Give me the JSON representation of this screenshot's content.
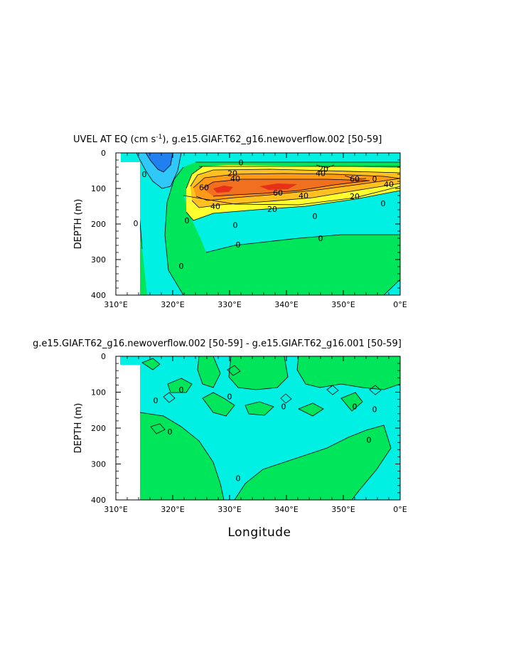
{
  "colors": {
    "cyan": "#00f0e4",
    "green": "#00e65a",
    "blue_dark": "#2080f0",
    "blue_light": "#30c8f8",
    "yellow": "#ffff30",
    "orange_light": "#ffc020",
    "orange": "#ff9a18",
    "orange_dark": "#f07020",
    "red": "#e63018"
  },
  "chart_data": [
    {
      "type": "heatmap",
      "title_prefix": "UVEL AT EQ (cm s",
      "title_sup": "-1",
      "title_suffix": "), g.e15.GIAF.T62_g16.newoverflow.002 [50-59]",
      "ylabel": "DEPTH (m)",
      "xlabel": "",
      "x_ticks": [
        "310°E",
        "320°E",
        "330°E",
        "340°E",
        "350°E",
        "0°E"
      ],
      "y_ticks": [
        "0",
        "100",
        "200",
        "300",
        "400"
      ],
      "xlim": [
        310,
        360
      ],
      "ylim": [
        400,
        0
      ],
      "contour_labels": [
        {
          "text": "0",
          "lon": 332,
          "depth": 27
        },
        {
          "text": "0",
          "lon": 313.5,
          "depth": 198
        },
        {
          "text": "0",
          "lon": 331.5,
          "depth": 258
        },
        {
          "text": "0",
          "lon": 346,
          "depth": 240
        },
        {
          "text": "0",
          "lon": 321.5,
          "depth": 318
        },
        {
          "text": "0",
          "lon": 345,
          "depth": 178
        },
        {
          "text": "0",
          "lon": 357,
          "depth": 142
        },
        {
          "text": "0",
          "lon": 355.5,
          "depth": 73
        },
        {
          "text": "0",
          "lon": 331,
          "depth": 203
        },
        {
          "text": "0",
          "lon": 315,
          "depth": 60
        },
        {
          "text": "20",
          "lon": 330.5,
          "depth": 57
        },
        {
          "text": "20",
          "lon": 337.5,
          "depth": 158
        },
        {
          "text": "20",
          "lon": 352,
          "depth": 122
        },
        {
          "text": "40",
          "lon": 331,
          "depth": 72
        },
        {
          "text": "40",
          "lon": 327.5,
          "depth": 150
        },
        {
          "text": "40",
          "lon": 343,
          "depth": 120
        },
        {
          "text": "40",
          "lon": 358,
          "depth": 88
        },
        {
          "text": "40",
          "lon": 346,
          "depth": 57
        },
        {
          "text": "60",
          "lon": 325.5,
          "depth": 97
        },
        {
          "text": "60",
          "lon": 338.5,
          "depth": 112
        },
        {
          "text": "60",
          "lon": 352,
          "depth": 73
        },
        {
          "text": "20",
          "lon": 346.5,
          "depth": 45
        },
        {
          "text": "0",
          "lon": 322.5,
          "depth": 190
        }
      ]
    },
    {
      "type": "heatmap",
      "title": "g.e15.GIAF.T62_g16.newoverflow.002 [50-59] - g.e15.GIAF.T62_g16.001 [50-59]",
      "ylabel": "DEPTH (m)",
      "xlabel": "Longitude",
      "x_ticks": [
        "310°E",
        "320°E",
        "330°E",
        "340°E",
        "350°E",
        "0°E"
      ],
      "y_ticks": [
        "0",
        "100",
        "200",
        "300",
        "400"
      ],
      "xlim": [
        310,
        360
      ],
      "ylim": [
        400,
        0
      ],
      "contour_labels": [
        {
          "text": "0",
          "lon": 321.5,
          "depth": 93
        },
        {
          "text": "0",
          "lon": 317,
          "depth": 123
        },
        {
          "text": "0",
          "lon": 330,
          "depth": 112
        },
        {
          "text": "0",
          "lon": 339.5,
          "depth": 140
        },
        {
          "text": "0",
          "lon": 319.5,
          "depth": 210
        },
        {
          "text": "0",
          "lon": 331.5,
          "depth": 340
        },
        {
          "text": "0",
          "lon": 352,
          "depth": 140
        },
        {
          "text": "0",
          "lon": 355.5,
          "depth": 148
        },
        {
          "text": "0",
          "lon": 354.5,
          "depth": 233
        }
      ]
    }
  ]
}
